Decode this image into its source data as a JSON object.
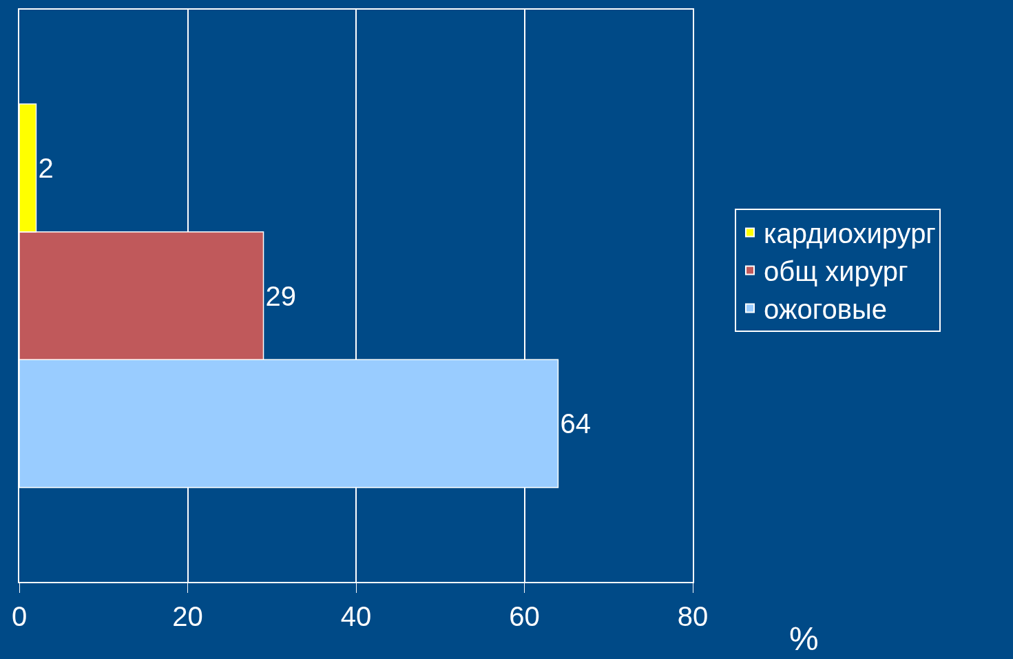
{
  "chart_data": {
    "type": "bar",
    "orientation": "horizontal",
    "categories": [
      null
    ],
    "xlabel": "%",
    "series": [
      {
        "name": "кардиохирург",
        "color": "#ffff00",
        "values": [
          2
        ]
      },
      {
        "name": "общ хирург",
        "color": "#c0595b",
        "values": [
          29
        ]
      },
      {
        "name": "ожоговые",
        "color": "#99ccff",
        "values": [
          64
        ]
      }
    ],
    "xlim": [
      0,
      80
    ],
    "xticks": [
      0,
      20,
      40,
      60,
      80
    ],
    "grid": "x",
    "legend": "right",
    "data_labels": true,
    "tick_labels": "x"
  }
}
